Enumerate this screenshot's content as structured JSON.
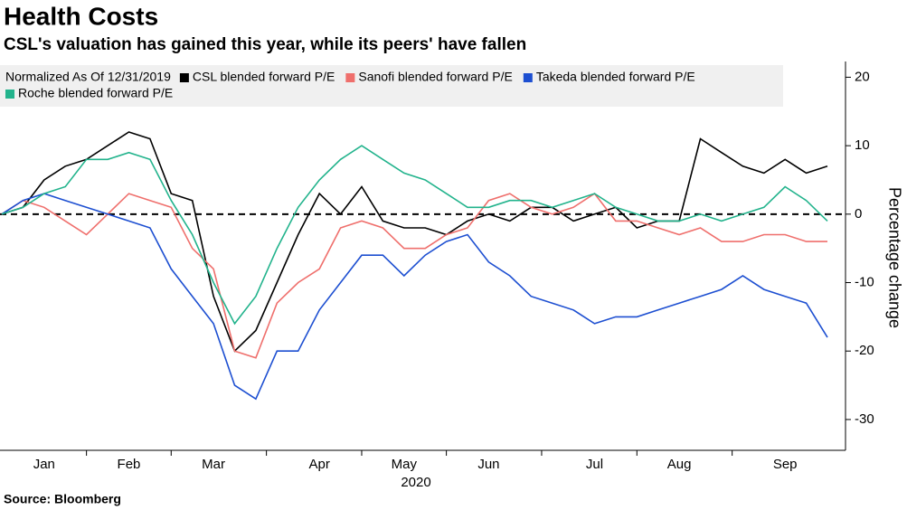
{
  "chart_data": {
    "type": "line",
    "title": "Health Costs",
    "subtitle": "CSL's valuation has gained this year, while its peers' have fallen",
    "legend_title": "Normalized As Of 12/31/2019",
    "x_label": "2020",
    "y_label": "Percentage change",
    "source": "Source: Bloomberg",
    "categories": [
      null,
      null,
      "Jan",
      null,
      null,
      null,
      "Feb",
      null,
      null,
      null,
      "Mar",
      null,
      null,
      null,
      null,
      "Apr",
      null,
      null,
      null,
      "May",
      null,
      null,
      null,
      "Jun",
      null,
      null,
      null,
      null,
      "Jul",
      null,
      null,
      null,
      "Aug",
      null,
      null,
      null,
      null,
      "Sep",
      null,
      null
    ],
    "series": [
      {
        "name": "CSL blended forward P/E",
        "color": "#000000",
        "values": [
          0,
          1,
          5,
          7,
          8,
          10,
          12,
          11,
          3,
          2,
          -12,
          -20,
          -17,
          -10,
          -3,
          3,
          0,
          4,
          -1,
          -2,
          -2,
          -3,
          -1,
          0,
          -1,
          1,
          1,
          -1,
          0,
          1,
          -2,
          -1,
          -1,
          11,
          9,
          7,
          6,
          8,
          6,
          7
        ]
      },
      {
        "name": "Sanofi blended forward P/E",
        "color": "#ef6f6c",
        "values": [
          0,
          2,
          1,
          -1,
          -3,
          0,
          3,
          2,
          1,
          -5,
          -8,
          -20,
          -21,
          -13,
          -10,
          -8,
          -2,
          -1,
          -2,
          -5,
          -5,
          -3,
          -2,
          2,
          3,
          1,
          0,
          1,
          3,
          -1,
          -1,
          -2,
          -3,
          -2,
          -4,
          -4,
          -3,
          -3,
          -4,
          -4
        ]
      },
      {
        "name": "Takeda blended forward P/E",
        "color": "#1d4fd1",
        "values": [
          0,
          2,
          3,
          2,
          1,
          0,
          -1,
          -2,
          -8,
          -12,
          -16,
          -25,
          -27,
          -20,
          -20,
          -14,
          -10,
          -6,
          -6,
          -9,
          -6,
          -4,
          -3,
          -7,
          -9,
          -12,
          -13,
          -14,
          -16,
          -15,
          -15,
          -14,
          -13,
          -12,
          -11,
          -9,
          -11,
          -12,
          -13,
          -18
        ]
      },
      {
        "name": "Roche blended forward P/E",
        "color": "#22b38c",
        "values": [
          0,
          1,
          3,
          4,
          8,
          8,
          9,
          8,
          2,
          -3,
          -10,
          -16,
          -12,
          -5,
          1,
          5,
          8,
          10,
          8,
          6,
          5,
          3,
          1,
          1,
          2,
          2,
          1,
          2,
          3,
          1,
          0,
          -1,
          -1,
          0,
          -1,
          0,
          1,
          4,
          2,
          -1
        ]
      }
    ],
    "ylim": [
      -34.5,
      22.3
    ],
    "yticks": [
      -30,
      -20,
      -10,
      0,
      10,
      20
    ],
    "zero_line": true,
    "legend": "top-left"
  }
}
